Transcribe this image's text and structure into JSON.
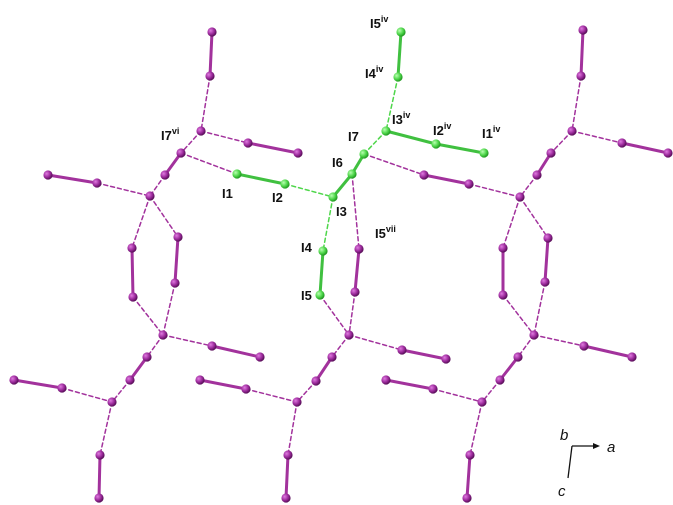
{
  "colors": {
    "purple_atom": "#9b2a9b",
    "purple_bond": "#a2329c",
    "green_atom": "#4ed64a",
    "green_bond": "#40c040"
  },
  "labels": [
    {
      "id": "I5iv",
      "base": "I5",
      "sup": "iv"
    },
    {
      "id": "I4iv",
      "base": "I4",
      "sup": "iv"
    },
    {
      "id": "I3iv",
      "base": "I3",
      "sup": "iv"
    },
    {
      "id": "I2iv",
      "base": "I2",
      "sup": "iv"
    },
    {
      "id": "I1iv",
      "base": "I1",
      "sup": "iv"
    },
    {
      "id": "I7",
      "base": "I7",
      "sup": ""
    },
    {
      "id": "I6",
      "base": "I6",
      "sup": ""
    },
    {
      "id": "I7vi",
      "base": "I7",
      "sup": "vi"
    },
    {
      "id": "I1",
      "base": "I1",
      "sup": ""
    },
    {
      "id": "I2",
      "base": "I2",
      "sup": ""
    },
    {
      "id": "I3",
      "base": "I3",
      "sup": ""
    },
    {
      "id": "I5vii",
      "base": "I5",
      "sup": "vii"
    },
    {
      "id": "I4",
      "base": "I4",
      "sup": ""
    },
    {
      "id": "I5",
      "base": "I5",
      "sup": ""
    }
  ],
  "axes": {
    "b": "b",
    "a": "a",
    "c": "c"
  }
}
